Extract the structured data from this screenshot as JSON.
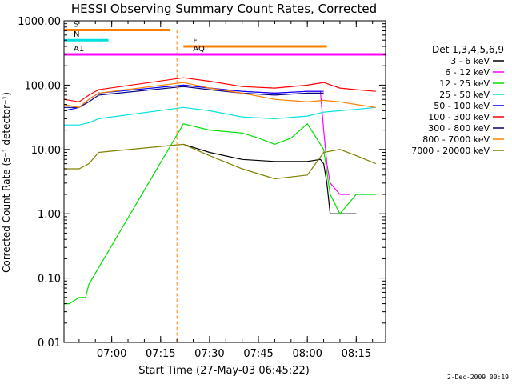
{
  "chart_data": {
    "type": "line",
    "title": "HESSI Observing Summary Count Rates, Corrected",
    "xlabel": "Start Time (27-May-03 06:45:22)",
    "ylabel": "Corrected Count Rate (s⁻¹ detector⁻¹)",
    "yscale": "log",
    "ylim": [
      0.01,
      1000
    ],
    "xlim": [
      "06:45:22",
      "08:24:00"
    ],
    "ytick_labels": [
      "1000.00",
      "100.00",
      "10.00",
      "1.00",
      "0.10",
      "0.01"
    ],
    "ytick_values": [
      1000,
      100,
      10,
      1,
      0.1,
      0.01
    ],
    "xtick_labels": [
      "07:00",
      "07:15",
      "07:30",
      "07:45",
      "08:00",
      "08:15"
    ],
    "legend_title": "Det 1,3,4,5,6,9",
    "legend_position": "right",
    "footer_date": "2-Dec-2009 00:19",
    "series": [
      {
        "name": "3 - 6 keV",
        "color": "#000000",
        "x": [
          "06:45:22",
          "06:50",
          "06:53",
          "06:56",
          "07:22",
          "07:30",
          "07:40",
          "07:50",
          "08:00",
          "08:04",
          "08:05",
          "08:06",
          "08:07",
          "08:15"
        ],
        "y": [
          null,
          null,
          null,
          null,
          12,
          9,
          7,
          6.5,
          6.5,
          7,
          6,
          3,
          1,
          1
        ]
      },
      {
        "name": "6 - 12 keV",
        "color": "#ff00ff",
        "x": [
          "06:45:22",
          "06:50",
          "06:53",
          "06:56",
          "07:22",
          "07:30",
          "07:40",
          "07:50",
          "08:00",
          "08:04",
          "08:05",
          "08:06",
          "08:07",
          "08:10",
          "08:13"
        ],
        "y": [
          null,
          null,
          null,
          null,
          100,
          90,
          80,
          75,
          80,
          80,
          20,
          6,
          3,
          2,
          2
        ]
      },
      {
        "name": "12 - 25 keV",
        "color": "#00e000",
        "x": [
          "06:45:22",
          "06:47",
          "06:50",
          "06:52",
          "06:53",
          "07:22",
          "07:30",
          "07:40",
          "07:45",
          "07:50",
          "07:55",
          "08:00",
          "08:05",
          "08:07",
          "08:10",
          "08:15",
          "08:21"
        ],
        "y": [
          0.04,
          0.04,
          0.05,
          0.05,
          0.08,
          25,
          20,
          18,
          15,
          12,
          15,
          25,
          10,
          2,
          1,
          2,
          2
        ]
      },
      {
        "name": "25 - 50 keV",
        "color": "#00e0e0",
        "x": [
          "06:45:22",
          "06:50",
          "06:53",
          "06:56",
          "07:22",
          "07:30",
          "07:40",
          "07:50",
          "08:00",
          "08:05",
          "08:10",
          "08:15",
          "08:21"
        ],
        "y": [
          24,
          24,
          26,
          30,
          45,
          40,
          32,
          30,
          33,
          38,
          40,
          42,
          45
        ]
      },
      {
        "name": "50 - 100 keV",
        "color": "#0000ff",
        "x": [
          "06:45:22",
          "06:50",
          "06:53",
          "06:56",
          "07:22",
          "07:30",
          "07:40",
          "07:50",
          "08:00",
          "08:05"
        ],
        "y": [
          40,
          45,
          60,
          75,
          100,
          90,
          80,
          75,
          80,
          80
        ]
      },
      {
        "name": "100 - 300 keV",
        "color": "#ff0000",
        "x": [
          "06:45:22",
          "06:50",
          "06:53",
          "06:56",
          "07:22",
          "07:30",
          "07:40",
          "07:50",
          "08:00",
          "08:05",
          "08:10",
          "08:15",
          "08:21"
        ],
        "y": [
          60,
          55,
          70,
          85,
          130,
          115,
          95,
          90,
          100,
          110,
          90,
          85,
          80
        ]
      },
      {
        "name": "300 - 800 keV",
        "color": "#000080",
        "x": [
          "06:45:22",
          "06:50",
          "06:53",
          "06:56",
          "07:22",
          "07:30",
          "07:40",
          "07:50",
          "08:00",
          "08:05"
        ],
        "y": [
          45,
          45,
          55,
          70,
          95,
          85,
          75,
          70,
          75,
          75
        ]
      },
      {
        "name": "800 - 7000 keV",
        "color": "#ff8000",
        "x": [
          "06:45:22",
          "06:50",
          "06:53",
          "06:56",
          "07:22",
          "07:30",
          "07:40",
          "07:50",
          "08:00",
          "08:05",
          "08:10",
          "08:15",
          "08:21"
        ],
        "y": [
          50,
          45,
          60,
          75,
          110,
          90,
          75,
          60,
          55,
          58,
          55,
          50,
          45
        ]
      },
      {
        "name": "7000 - 20000 keV",
        "color": "#808000",
        "x": [
          "06:45:22",
          "06:50",
          "06:53",
          "06:56",
          "07:22",
          "07:30",
          "07:40",
          "07:50",
          "08:00",
          "08:05",
          "08:10",
          "08:15",
          "08:21"
        ],
        "y": [
          5,
          5,
          6,
          9,
          12,
          8,
          5,
          3.5,
          4,
          9,
          10,
          8,
          6
        ]
      }
    ],
    "markers": [
      {
        "label": "S",
        "color": "#ff8000",
        "x_start": "06:45:22",
        "x_end": "07:18",
        "y": 720,
        "line": "07:20"
      },
      {
        "label": "N",
        "color": "#00e0e0",
        "x_start": "06:45:22",
        "x_end": "06:59",
        "y": 500
      },
      {
        "label": "F",
        "color": "#ff8000",
        "x_start": "07:22",
        "x_end": "08:06",
        "y": 400
      },
      {
        "label": "AQ",
        "color": "#ff00ff",
        "x_start": "07:22",
        "x_end": "08:06",
        "y": 300
      },
      {
        "label": "A1",
        "color": "#ff00ff",
        "x_start": "06:45:22",
        "x_end": "08:24",
        "y": 300
      }
    ],
    "grid": false
  }
}
